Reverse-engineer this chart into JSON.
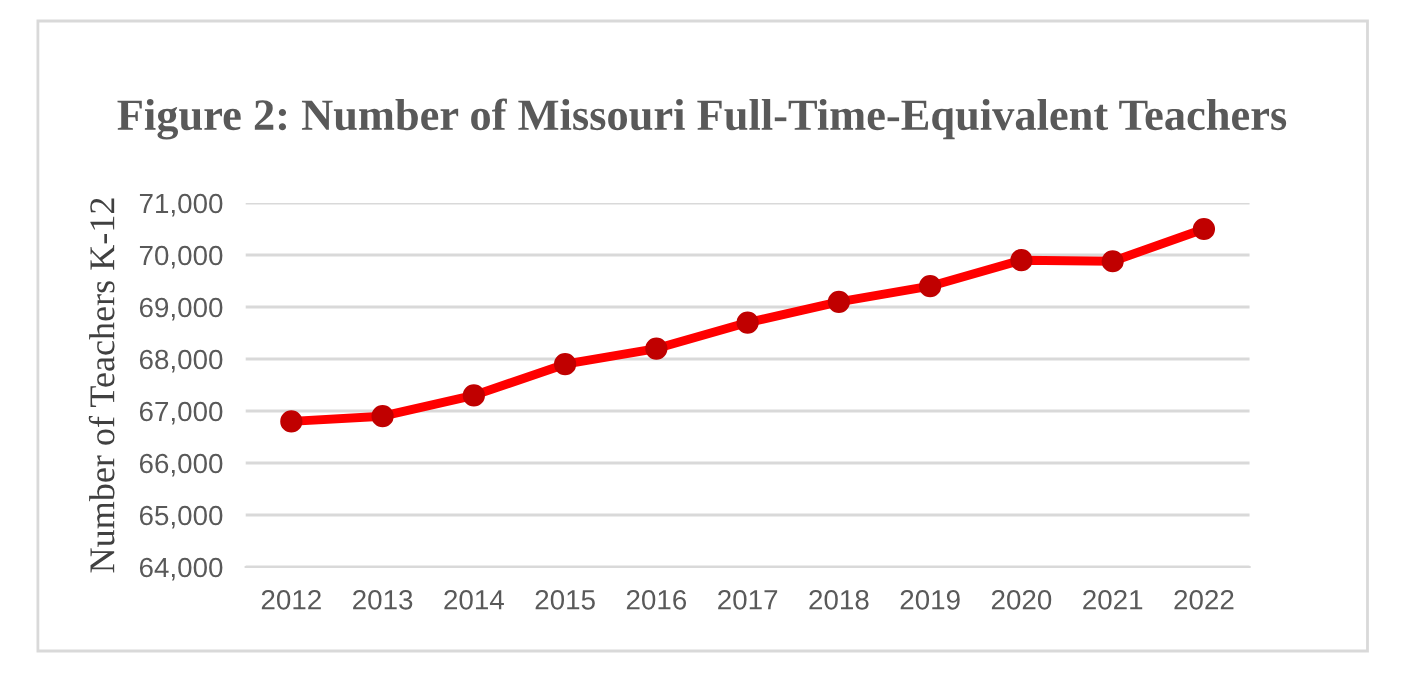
{
  "chart_data": {
    "type": "line",
    "title": "Figure 2: Number of Missouri Full-Time-Equivalent Teachers",
    "ylabel": "Number of Teachers K-12",
    "categories": [
      "2012",
      "2013",
      "2014",
      "2015",
      "2016",
      "2017",
      "2018",
      "2019",
      "2020",
      "2021",
      "2022"
    ],
    "series": [
      {
        "color": "#ff0000",
        "values": [
          66800,
          66900,
          67300,
          67900,
          68200,
          68700,
          69100,
          69400,
          69900,
          69880,
          70500
        ]
      }
    ],
    "ylim": [
      64000,
      71000
    ],
    "yticks": [
      {
        "value": 64000,
        "label": "64,000"
      },
      {
        "value": 65000,
        "label": "65,000"
      },
      {
        "value": 66000,
        "label": "66,000"
      },
      {
        "value": 67000,
        "label": "67,000"
      },
      {
        "value": 68000,
        "label": "68,000"
      },
      {
        "value": 69000,
        "label": "69,000"
      },
      {
        "value": 70000,
        "label": "70,000"
      },
      {
        "value": 71000,
        "label": "71,000"
      }
    ],
    "grid": "y",
    "marker": "circle",
    "line_style": "solid"
  }
}
